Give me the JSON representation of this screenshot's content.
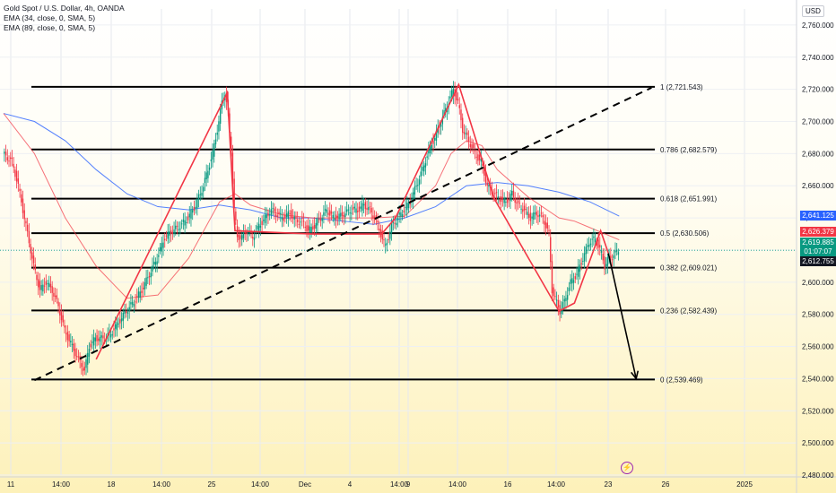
{
  "header": {
    "title": "Gold Spot / U.S. Dollar, 4h, OANDA",
    "indicators": [
      "EMA (34, close, 0, SMA, 5)",
      "EMA (89, close, 0, SMA, 5)"
    ],
    "currency": "USD"
  },
  "price_badges": [
    {
      "text": "2,641.125",
      "color": "#2962ff"
    },
    {
      "text": "2,626.379",
      "color": "#f23645"
    },
    {
      "text": "2,619.885",
      "color": "#089981"
    },
    {
      "text": "01:07:07",
      "color": "#089981"
    },
    {
      "text": "2,612.755",
      "color": "#131722"
    }
  ],
  "chart_data": {
    "type": "candlestick",
    "title": "Gold Spot / U.S. Dollar, 4h, OANDA",
    "y_axis": {
      "range": [
        2480,
        2770
      ],
      "ticks": [
        "2,760.000",
        "2,740.000",
        "2,720.000",
        "2,700.000",
        "2,680.000",
        "2,660.000",
        "2,640.000",
        "2,620.000",
        "2,600.000",
        "2,580.000",
        "2,560.000",
        "2,540.000",
        "2,520.000",
        "2,500.000",
        "2,480.000"
      ]
    },
    "x_axis": {
      "ticks": [
        "11",
        "14:00",
        "18",
        "14:00",
        "25",
        "14:00",
        "Dec",
        "4",
        "14:00",
        "9",
        "14:00",
        "16",
        "14:00",
        "23",
        "26",
        "2025"
      ]
    },
    "fib_levels": [
      {
        "label": "1 (2,721.543)",
        "price": 2721.543
      },
      {
        "label": "0.786 (2,682.579)",
        "price": 2682.579
      },
      {
        "label": "0.618 (2,651.991)",
        "price": 2651.991
      },
      {
        "label": "0.5 (2,630.506)",
        "price": 2630.506
      },
      {
        "label": "0.382 (2,609.021)",
        "price": 2609.021
      },
      {
        "label": "0.236 (2,582.439)",
        "price": 2582.439
      },
      {
        "label": "0 (2,539.469)",
        "price": 2539.469
      }
    ],
    "price_path": [
      [
        0,
        2680
      ],
      [
        6,
        2675
      ],
      [
        10,
        2660
      ],
      [
        14,
        2640
      ],
      [
        17,
        2625
      ],
      [
        20,
        2610
      ],
      [
        24,
        2595
      ],
      [
        28,
        2600
      ],
      [
        32,
        2595
      ],
      [
        36,
        2585
      ],
      [
        40,
        2570
      ],
      [
        45,
        2560
      ],
      [
        50,
        2550
      ],
      [
        53,
        2545
      ],
      [
        56,
        2560
      ],
      [
        60,
        2565
      ],
      [
        65,
        2565
      ],
      [
        70,
        2568
      ],
      [
        75,
        2575
      ],
      [
        80,
        2582
      ],
      [
        85,
        2588
      ],
      [
        90,
        2595
      ],
      [
        95,
        2605
      ],
      [
        100,
        2615
      ],
      [
        105,
        2628
      ],
      [
        110,
        2632
      ],
      [
        115,
        2635
      ],
      [
        120,
        2640
      ],
      [
        125,
        2648
      ],
      [
        130,
        2660
      ],
      [
        133,
        2670
      ],
      [
        136,
        2680
      ],
      [
        138,
        2690
      ],
      [
        140,
        2700
      ],
      [
        142,
        2712
      ],
      [
        144,
        2718
      ],
      [
        146,
        2705
      ],
      [
        148,
        2680
      ],
      [
        150,
        2645
      ],
      [
        152,
        2628
      ],
      [
        155,
        2628
      ],
      [
        158,
        2632
      ],
      [
        162,
        2628
      ],
      [
        166,
        2635
      ],
      [
        170,
        2640
      ],
      [
        174,
        2645
      ],
      [
        178,
        2642
      ],
      [
        182,
        2640
      ],
      [
        186,
        2643
      ],
      [
        190,
        2638
      ],
      [
        194,
        2638
      ],
      [
        198,
        2632
      ],
      [
        202,
        2635
      ],
      [
        206,
        2640
      ],
      [
        210,
        2645
      ],
      [
        214,
        2640
      ],
      [
        218,
        2641
      ],
      [
        222,
        2643
      ],
      [
        226,
        2645
      ],
      [
        230,
        2645
      ],
      [
        234,
        2648
      ],
      [
        238,
        2645
      ],
      [
        242,
        2638
      ],
      [
        245,
        2630
      ],
      [
        248,
        2622
      ],
      [
        252,
        2635
      ],
      [
        256,
        2640
      ],
      [
        260,
        2645
      ],
      [
        264,
        2650
      ],
      [
        268,
        2660
      ],
      [
        272,
        2670
      ],
      [
        276,
        2682
      ],
      [
        280,
        2690
      ],
      [
        284,
        2700
      ],
      [
        288,
        2710
      ],
      [
        292,
        2720
      ],
      [
        295,
        2712
      ],
      [
        298,
        2695
      ],
      [
        302,
        2688
      ],
      [
        306,
        2680
      ],
      [
        310,
        2675
      ],
      [
        314,
        2660
      ],
      [
        318,
        2655
      ],
      [
        322,
        2652
      ],
      [
        326,
        2650
      ],
      [
        330,
        2655
      ],
      [
        334,
        2648
      ],
      [
        338,
        2645
      ],
      [
        342,
        2640
      ],
      [
        346,
        2643
      ],
      [
        350,
        2640
      ],
      [
        354,
        2630
      ],
      [
        356,
        2595
      ],
      [
        358,
        2590
      ],
      [
        361,
        2582
      ],
      [
        364,
        2588
      ],
      [
        368,
        2600
      ],
      [
        372,
        2605
      ],
      [
        376,
        2615
      ],
      [
        380,
        2625
      ],
      [
        384,
        2627
      ],
      [
        388,
        2618
      ],
      [
        390,
        2610
      ],
      [
        392,
        2614
      ],
      [
        396,
        2617
      ],
      [
        399,
        2619.885
      ]
    ],
    "ema34": [
      [
        0,
        2705
      ],
      [
        20,
        2680
      ],
      [
        40,
        2640
      ],
      [
        60,
        2610
      ],
      [
        80,
        2590
      ],
      [
        100,
        2592
      ],
      [
        120,
        2615
      ],
      [
        140,
        2650
      ],
      [
        150,
        2655
      ],
      [
        160,
        2648
      ],
      [
        180,
        2642
      ],
      [
        200,
        2640
      ],
      [
        220,
        2640
      ],
      [
        240,
        2640
      ],
      [
        260,
        2641
      ],
      [
        280,
        2660
      ],
      [
        290,
        2680
      ],
      [
        300,
        2688
      ],
      [
        310,
        2685
      ],
      [
        320,
        2670
      ],
      [
        340,
        2653
      ],
      [
        360,
        2640
      ],
      [
        370,
        2638
      ],
      [
        380,
        2634
      ],
      [
        390,
        2630
      ],
      [
        399,
        2626.379
      ]
    ],
    "ema89": [
      [
        0,
        2705
      ],
      [
        20,
        2700
      ],
      [
        40,
        2688
      ],
      [
        60,
        2670
      ],
      [
        80,
        2655
      ],
      [
        100,
        2647
      ],
      [
        120,
        2645
      ],
      [
        140,
        2648
      ],
      [
        160,
        2645
      ],
      [
        180,
        2640
      ],
      [
        200,
        2640
      ],
      [
        220,
        2638
      ],
      [
        240,
        2636
      ],
      [
        260,
        2640
      ],
      [
        280,
        2647
      ],
      [
        300,
        2660
      ],
      [
        320,
        2662
      ],
      [
        340,
        2660
      ],
      [
        360,
        2656
      ],
      [
        380,
        2650
      ],
      [
        399,
        2641.125
      ]
    ],
    "zigzag": [
      [
        60,
        2552
      ],
      [
        145,
        2718
      ],
      [
        150,
        2632
      ],
      [
        200,
        2630
      ],
      [
        245,
        2630
      ],
      [
        254,
        2640
      ],
      [
        295,
        2723
      ],
      [
        318,
        2652
      ],
      [
        360,
        2582
      ],
      [
        370,
        2587
      ],
      [
        387,
        2632
      ],
      [
        392,
        2618
      ]
    ],
    "projection": [
      [
        392,
        2618
      ],
      [
        410,
        2540
      ]
    ],
    "trendline": [
      [
        20,
        2539
      ],
      [
        420,
        2721
      ]
    ]
  }
}
